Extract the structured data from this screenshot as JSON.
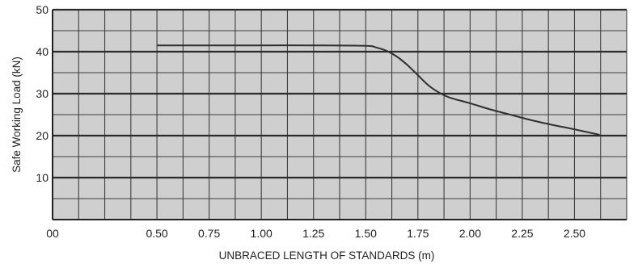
{
  "chart_data": {
    "type": "line",
    "title": "",
    "xlabel": "UNBRACED LENGTH OF STANDARDS (m)",
    "ylabel": "Safe Working Load (kN)",
    "xlim": [
      0.0,
      2.75
    ],
    "ylim": [
      0,
      50
    ],
    "x_tick_labels": [
      {
        "x": 0.0,
        "label": "00"
      },
      {
        "x": 0.5,
        "label": "0.50"
      },
      {
        "x": 0.75,
        "label": "0.75"
      },
      {
        "x": 1.0,
        "label": "1.00"
      },
      {
        "x": 1.25,
        "label": "1.25"
      },
      {
        "x": 1.5,
        "label": "1.50"
      },
      {
        "x": 1.75,
        "label": "1.75"
      },
      {
        "x": 2.0,
        "label": "2.00"
      },
      {
        "x": 2.25,
        "label": "2.25"
      },
      {
        "x": 2.5,
        "label": "2.50"
      }
    ],
    "y_tick_labels": [
      {
        "y": 10,
        "label": "10"
      },
      {
        "y": 20,
        "label": "20"
      },
      {
        "y": 30,
        "label": "30"
      },
      {
        "y": 40,
        "label": "40"
      },
      {
        "y": 50,
        "label": "50"
      }
    ],
    "grid": true,
    "series": [
      {
        "color": "#2f2f2f",
        "x": [
          0.5,
          0.75,
          1.0,
          1.25,
          1.5,
          1.55,
          1.6,
          1.65,
          1.7,
          1.75,
          1.8,
          1.85,
          1.9,
          2.0,
          2.1,
          2.2,
          2.3,
          2.4,
          2.5,
          2.62
        ],
        "y": [
          41.5,
          41.5,
          41.5,
          41.5,
          41.4,
          41.0,
          40.2,
          38.8,
          36.8,
          34.4,
          32.0,
          30.3,
          29.1,
          27.7,
          26.2,
          24.9,
          23.6,
          22.5,
          21.5,
          20.2
        ]
      }
    ]
  }
}
